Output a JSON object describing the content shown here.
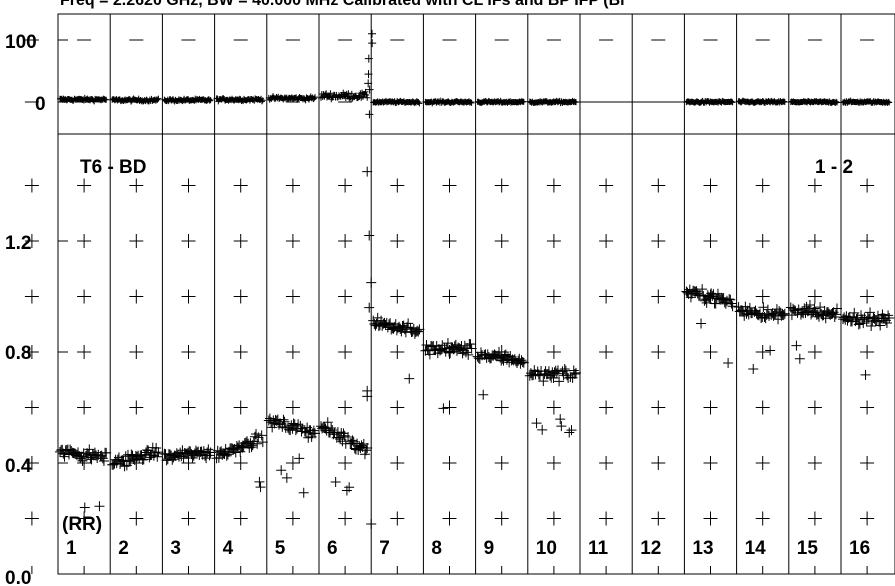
{
  "title": "Freq = 2.2620 GHz, BW = 40.000 MHz  Calibrated with CL IFs and BP IFP (Bi",
  "chart_data": [
    {
      "type": "scatter",
      "panel": "top",
      "yticks": [
        "100",
        "0"
      ],
      "ylim": [
        -25,
        135
      ],
      "grid": true,
      "channel_values": [
        4,
        3,
        3,
        4,
        6,
        10,
        0,
        0,
        0,
        0,
        null,
        null,
        0,
        0,
        0,
        0
      ],
      "channel_spread": [
        4,
        4,
        4,
        4,
        5,
        9,
        3,
        3,
        3,
        3,
        0,
        0,
        3,
        3,
        3,
        3
      ],
      "flat_line": {
        "from_channel": 10,
        "to_channel": 13,
        "value": 0
      }
    },
    {
      "type": "scatter",
      "panel": "bottom",
      "annotations": {
        "left": "T6 - BD",
        "right": "1 - 2",
        "corner": "(RR)"
      },
      "yticks": [
        "1.2",
        "0.8",
        "0.4",
        "0.0"
      ],
      "ylim": [
        0.0,
        1.5
      ],
      "grid": true,
      "categories": [
        "1",
        "2",
        "3",
        "4",
        "5",
        "6",
        "7",
        "8",
        "9",
        "10",
        "11",
        "12",
        "13",
        "14",
        "15",
        "16"
      ],
      "channel_values": [
        0.43,
        0.42,
        0.43,
        0.46,
        0.53,
        0.49,
        0.89,
        0.81,
        0.78,
        0.72,
        null,
        null,
        1.0,
        0.94,
        0.94,
        0.92
      ],
      "channel_trend": [
        -0.01,
        0.02,
        0.01,
        0.03,
        -0.02,
        -0.04,
        -0.02,
        0.0,
        -0.01,
        0.0,
        0,
        0,
        -0.02,
        -0.01,
        -0.01,
        0.0
      ],
      "spike": {
        "channel": 6.95,
        "values": [
          0.64,
          1.22,
          1.05,
          0.66,
          0.96,
          0.18,
          1.45
        ]
      }
    }
  ]
}
